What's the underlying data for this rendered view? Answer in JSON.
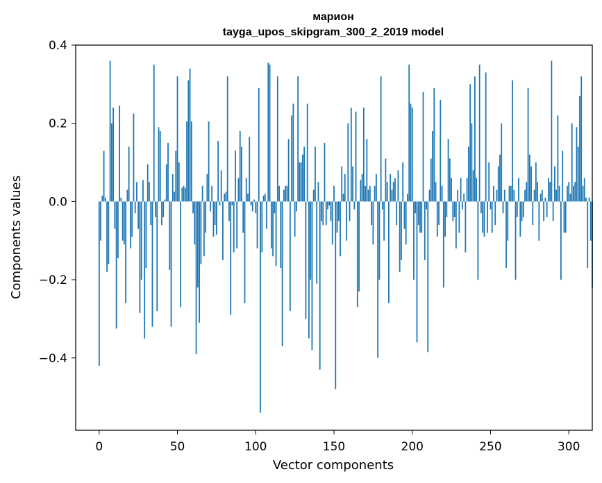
{
  "chart_data": {
    "type": "bar",
    "title_lines": [
      "марион",
      "tayga_upos_skipgram_300_2_2019 model"
    ],
    "xlabel": "Vector components",
    "ylabel": "Components values",
    "xlim": [
      -15,
      315
    ],
    "ylim": [
      -0.585,
      0.4
    ],
    "xticks": [
      0,
      50,
      100,
      150,
      200,
      250,
      300
    ],
    "yticks": [
      -0.4,
      -0.2,
      0.0,
      0.2,
      0.4
    ],
    "ytick_labels": [
      "−0.4",
      "−0.2",
      "0.0",
      "0.2",
      "0.4"
    ],
    "grid": false,
    "bar_color": "#1f77b4",
    "values": [
      -0.42,
      -0.1,
      0.015,
      0.13,
      0.01,
      -0.18,
      -0.16,
      0.36,
      0.2,
      0.24,
      -0.07,
      -0.325,
      -0.145,
      0.245,
      0.01,
      -0.1,
      -0.11,
      -0.26,
      0.03,
      0.14,
      -0.12,
      -0.09,
      0.225,
      -0.03,
      0.05,
      -0.07,
      -0.285,
      -0.2,
      0.055,
      -0.35,
      -0.17,
      0.095,
      0.05,
      -0.06,
      -0.32,
      0.35,
      -0.04,
      -0.28,
      0.19,
      0.18,
      -0.06,
      -0.04,
      0.005,
      0.095,
      0.15,
      -0.175,
      -0.32,
      0.07,
      0.025,
      0.13,
      0.32,
      0.1,
      -0.27,
      0.035,
      0.04,
      0.035,
      0.205,
      0.31,
      0.34,
      0.205,
      -0.03,
      -0.11,
      -0.39,
      -0.22,
      -0.31,
      -0.16,
      0.04,
      -0.14,
      -0.08,
      0.07,
      0.205,
      -0.025,
      0.04,
      -0.09,
      -0.06,
      -0.085,
      0.155,
      -0.01,
      0.08,
      -0.15,
      0.02,
      0.025,
      0.32,
      -0.05,
      -0.29,
      -0.01,
      -0.13,
      0.13,
      -0.12,
      0.06,
      0.18,
      0.14,
      -0.08,
      -0.26,
      0.06,
      0.02,
      0.165,
      -0.01,
      -0.025,
      0.005,
      -0.03,
      -0.12,
      0.29,
      -0.54,
      -0.13,
      0.015,
      0.02,
      -0.07,
      0.355,
      0.35,
      -0.12,
      -0.14,
      -0.03,
      -0.165,
      0.32,
      0.04,
      -0.17,
      -0.37,
      0.03,
      0.04,
      0.04,
      0.16,
      -0.28,
      0.22,
      0.25,
      -0.09,
      -0.025,
      0.32,
      0.1,
      0.1,
      0.12,
      0.14,
      -0.3,
      0.25,
      -0.35,
      -0.2,
      -0.38,
      0.03,
      0.14,
      -0.21,
      0.05,
      -0.43,
      -0.05,
      -0.06,
      0.15,
      -0.06,
      -0.02,
      -0.01,
      -0.05,
      -0.11,
      0.04,
      -0.48,
      -0.08,
      -0.05,
      -0.14,
      0.09,
      0.02,
      0.07,
      -0.1,
      0.2,
      -0.05,
      0.24,
      0.09,
      -0.02,
      0.23,
      -0.27,
      -0.23,
      0.055,
      0.07,
      0.24,
      0.04,
      0.16,
      0.03,
      0.04,
      -0.06,
      -0.11,
      0.04,
      0.07,
      -0.4,
      -0.2,
      0.32,
      -0.02,
      -0.1,
      0.11,
      0.05,
      -0.26,
      0.07,
      0.03,
      0.05,
      0.06,
      -0.06,
      0.08,
      -0.18,
      -0.15,
      0.1,
      -0.07,
      -0.11,
      0.02,
      0.35,
      0.25,
      0.24,
      -0.2,
      -0.03,
      -0.36,
      -0.06,
      -0.08,
      -0.08,
      0.28,
      -0.15,
      -0.02,
      -0.385,
      0.03,
      0.11,
      0.18,
      0.29,
      0.05,
      -0.09,
      -0.06,
      0.26,
      0.04,
      -0.22,
      -0.09,
      -0.04,
      0.16,
      0.11,
      0.06,
      -0.05,
      -0.04,
      -0.12,
      0.03,
      -0.08,
      0.06,
      -0.02,
      0.02,
      -0.13,
      0.06,
      0.14,
      0.3,
      0.2,
      0.08,
      0.32,
      0.06,
      -0.2,
      0.35,
      -0.03,
      -0.08,
      -0.09,
      0.33,
      -0.08,
      0.1,
      -0.02,
      -0.08,
      0.04,
      -0.06,
      0.03,
      0.09,
      0.12,
      0.2,
      -0.03,
      0.03,
      -0.17,
      -0.1,
      0.04,
      0.04,
      0.31,
      0.03,
      -0.2,
      -0.04,
      0.06,
      -0.09,
      -0.05,
      -0.04,
      0.03,
      0.05,
      0.29,
      0.12,
      0.09,
      -0.06,
      0.03,
      0.1,
      0.05,
      -0.1,
      0.02,
      0.03,
      -0.05,
      0.01,
      -0.04,
      0.06,
      0.05,
      0.36,
      -0.05,
      0.09,
      0.03,
      0.22,
      0.04,
      -0.2,
      0.13,
      -0.08,
      -0.08,
      0.04,
      0.05,
      0.02,
      0.2,
      0.04,
      0.05,
      0.19,
      0.14,
      0.27,
      0.32,
      0.04,
      0.06,
      0.01,
      -0.17,
      0.01,
      -0.1,
      -0.22
    ]
  }
}
